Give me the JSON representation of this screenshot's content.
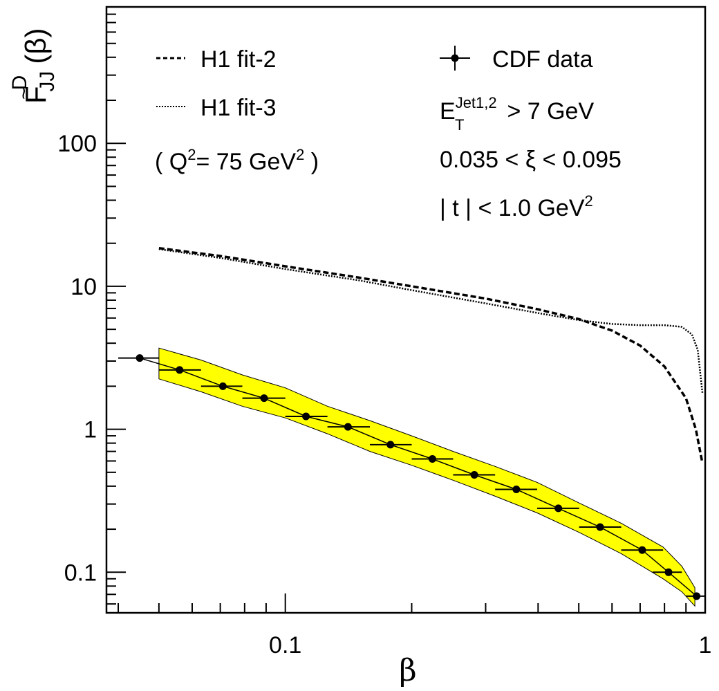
{
  "chart_data": {
    "type": "line",
    "x_scale": "log",
    "y_scale": "log",
    "xlim": [
      0.0375,
      1.0
    ],
    "ylim": [
      0.052,
      900
    ],
    "grid": false,
    "xlabel": "β",
    "ylabel": {
      "main": "F",
      "tilde": "~",
      "sup": "D",
      "sub": "JJ",
      "arg": "(β)"
    },
    "x_ticks": [
      {
        "value": 0.1,
        "label": "0.1"
      },
      {
        "value": 1.0,
        "label": "1"
      }
    ],
    "y_ticks": [
      {
        "value": 0.1,
        "label": "0.1"
      },
      {
        "value": 1,
        "label": "1"
      },
      {
        "value": 10,
        "label": "10"
      },
      {
        "value": 100,
        "label": "100"
      }
    ],
    "series": [
      {
        "name": "CDF data",
        "style": "points-with-xerr",
        "color": "#000000",
        "points": [
          {
            "x": 0.045,
            "y": 3.15,
            "xlo": 0.04,
            "xhi": 0.05
          },
          {
            "x": 0.056,
            "y": 2.6,
            "xlo": 0.05,
            "xhi": 0.063
          },
          {
            "x": 0.071,
            "y": 2.0,
            "xlo": 0.063,
            "xhi": 0.079
          },
          {
            "x": 0.089,
            "y": 1.65,
            "xlo": 0.079,
            "xhi": 0.1
          },
          {
            "x": 0.112,
            "y": 1.23,
            "xlo": 0.1,
            "xhi": 0.126
          },
          {
            "x": 0.141,
            "y": 1.04,
            "xlo": 0.126,
            "xhi": 0.159
          },
          {
            "x": 0.178,
            "y": 0.78,
            "xlo": 0.159,
            "xhi": 0.2
          },
          {
            "x": 0.224,
            "y": 0.62,
            "xlo": 0.2,
            "xhi": 0.251
          },
          {
            "x": 0.282,
            "y": 0.48,
            "xlo": 0.251,
            "xhi": 0.316
          },
          {
            "x": 0.355,
            "y": 0.38,
            "xlo": 0.316,
            "xhi": 0.398
          },
          {
            "x": 0.447,
            "y": 0.28,
            "xlo": 0.398,
            "xhi": 0.501
          },
          {
            "x": 0.562,
            "y": 0.207,
            "xlo": 0.501,
            "xhi": 0.631
          },
          {
            "x": 0.708,
            "y": 0.143,
            "xlo": 0.631,
            "xhi": 0.794
          },
          {
            "x": 0.818,
            "y": 0.1,
            "xlo": 0.75,
            "xhi": 0.88
          },
          {
            "x": 0.954,
            "y": 0.068,
            "xlo": 0.9,
            "xhi": 1.0
          }
        ]
      },
      {
        "name": "H1 fit-2",
        "style": "dashed",
        "color": "#000000",
        "points": [
          {
            "x": 0.05,
            "y": 18.5
          },
          {
            "x": 0.07,
            "y": 16.3
          },
          {
            "x": 0.1,
            "y": 13.8
          },
          {
            "x": 0.15,
            "y": 11.5
          },
          {
            "x": 0.2,
            "y": 10.0
          },
          {
            "x": 0.3,
            "y": 8.2
          },
          {
            "x": 0.4,
            "y": 6.9
          },
          {
            "x": 0.5,
            "y": 5.9
          },
          {
            "x": 0.6,
            "y": 4.9
          },
          {
            "x": 0.7,
            "y": 3.85
          },
          {
            "x": 0.8,
            "y": 2.75
          },
          {
            "x": 0.9,
            "y": 1.65
          },
          {
            "x": 0.95,
            "y": 1.0
          },
          {
            "x": 0.985,
            "y": 0.58
          }
        ]
      },
      {
        "name": "H1 fit-3",
        "style": "dotted",
        "color": "#000000",
        "points": [
          {
            "x": 0.05,
            "y": 18.2
          },
          {
            "x": 0.07,
            "y": 15.8
          },
          {
            "x": 0.1,
            "y": 13.2
          },
          {
            "x": 0.15,
            "y": 11.0
          },
          {
            "x": 0.2,
            "y": 9.4
          },
          {
            "x": 0.3,
            "y": 7.6
          },
          {
            "x": 0.4,
            "y": 6.5
          },
          {
            "x": 0.5,
            "y": 5.8
          },
          {
            "x": 0.6,
            "y": 5.45
          },
          {
            "x": 0.7,
            "y": 5.35
          },
          {
            "x": 0.8,
            "y": 5.35
          },
          {
            "x": 0.88,
            "y": 5.2
          },
          {
            "x": 0.93,
            "y": 4.6
          },
          {
            "x": 0.96,
            "y": 3.6
          },
          {
            "x": 0.985,
            "y": 1.8
          }
        ]
      }
    ],
    "band": {
      "fill": "#ffff00",
      "points": [
        {
          "x": 0.05,
          "lo": 2.25,
          "hi": 3.7
        },
        {
          "x": 0.063,
          "lo": 1.83,
          "hi": 3.05
        },
        {
          "x": 0.079,
          "lo": 1.45,
          "hi": 2.4
        },
        {
          "x": 0.1,
          "lo": 1.2,
          "hi": 1.95
        },
        {
          "x": 0.126,
          "lo": 0.93,
          "hi": 1.45
        },
        {
          "x": 0.159,
          "lo": 0.7,
          "hi": 1.15
        },
        {
          "x": 0.2,
          "lo": 0.56,
          "hi": 0.9
        },
        {
          "x": 0.251,
          "lo": 0.44,
          "hi": 0.7
        },
        {
          "x": 0.316,
          "lo": 0.34,
          "hi": 0.55
        },
        {
          "x": 0.398,
          "lo": 0.26,
          "hi": 0.425
        },
        {
          "x": 0.501,
          "lo": 0.19,
          "hi": 0.305
        },
        {
          "x": 0.631,
          "lo": 0.135,
          "hi": 0.22
        },
        {
          "x": 0.794,
          "lo": 0.09,
          "hi": 0.15
        },
        {
          "x": 0.88,
          "lo": 0.073,
          "hi": 0.11
        },
        {
          "x": 0.945,
          "lo": 0.058,
          "hi": 0.078
        }
      ]
    }
  },
  "legend": {
    "fit2_label": "H1 fit-2",
    "fit3_label": "H1 fit-3",
    "q2_text": "( Q",
    "q2_sup": "2",
    "q2_mid": "= 75 GeV",
    "q2_sup2": "2",
    "q2_close": " )",
    "cdf_label": "CDF data",
    "et_main": "E",
    "et_sup": "Jet1,2",
    "et_sub": "T",
    "et_rest": " > 7 GeV",
    "xi_text": "0.035 < ξ < 0.095",
    "t_text": "| t | < 1.0 GeV",
    "t_sup": "2"
  }
}
